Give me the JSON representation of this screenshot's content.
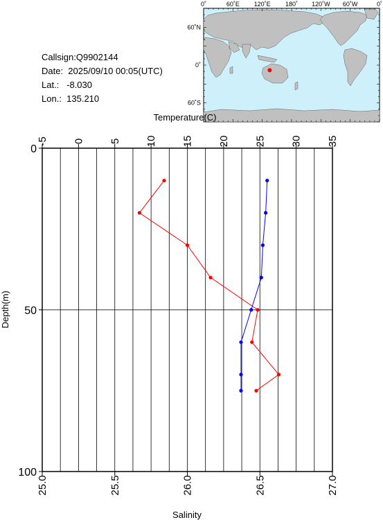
{
  "info": {
    "callsign": "Callsign:Q9902144",
    "date": "Date:  2025/09/10 00:05(UTC)",
    "lat": "Lat.:   -8.030",
    "lon": "Lon.:  135.210"
  },
  "map": {
    "top_labels": [
      "0˚",
      "60˚E",
      "120˚E",
      "180˚",
      "120˚W",
      "60˚W",
      "0˚"
    ],
    "left_labels": [
      "60˚N",
      "0˚",
      "60˚S"
    ],
    "ocean_color": "#cdf0fa",
    "land_color": "#c0c0c0",
    "marker_color": "#ff0000",
    "marker": {
      "lon": 135.21,
      "lat": -8.03
    }
  },
  "chart_data": {
    "type": "line",
    "top_axis": {
      "label": "Temperature(C)",
      "range": [
        -5,
        35
      ],
      "ticks": [
        -5,
        0,
        5,
        10,
        15,
        20,
        25,
        30,
        35
      ]
    },
    "bottom_axis": {
      "label": "Salinity",
      "range": [
        25.0,
        27.0
      ],
      "ticks": [
        "25.0",
        "25.5",
        "26.0",
        "26.5",
        "27.0"
      ]
    },
    "y_axis": {
      "label": "Depth(m)",
      "range": [
        0,
        100
      ],
      "inverted": true,
      "ticks": [
        0,
        50,
        100
      ]
    },
    "grid": true,
    "series": [
      {
        "axis": "top",
        "color": "#ff0000",
        "points": [
          {
            "x": 11.8,
            "depth": 10
          },
          {
            "x": 8.4,
            "depth": 20
          },
          {
            "x": 15.0,
            "depth": 30
          },
          {
            "x": 18.2,
            "depth": 40
          },
          {
            "x": 24.7,
            "depth": 50
          },
          {
            "x": 23.9,
            "depth": 60
          },
          {
            "x": 27.6,
            "depth": 70
          },
          {
            "x": 24.5,
            "depth": 75
          }
        ]
      },
      {
        "axis": "bottom",
        "color": "#0000ff",
        "points": [
          {
            "x": 26.55,
            "depth": 10
          },
          {
            "x": 26.54,
            "depth": 20
          },
          {
            "x": 26.52,
            "depth": 30
          },
          {
            "x": 26.51,
            "depth": 40
          },
          {
            "x": 26.44,
            "depth": 50
          },
          {
            "x": 26.37,
            "depth": 60
          },
          {
            "x": 26.37,
            "depth": 70
          },
          {
            "x": 26.37,
            "depth": 75
          }
        ]
      }
    ]
  }
}
